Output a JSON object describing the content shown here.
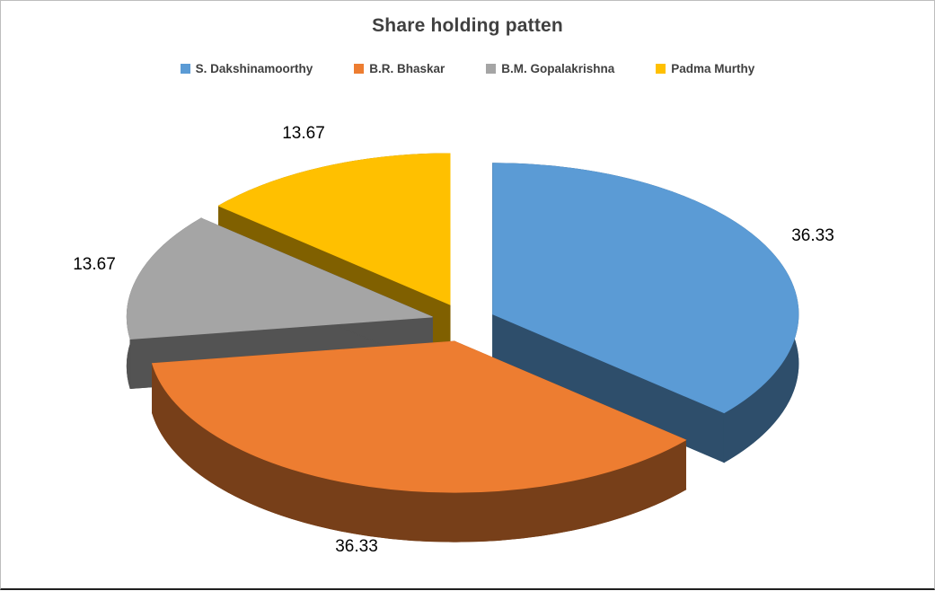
{
  "chart_data": {
    "type": "pie",
    "style": "3d-exploded-pie",
    "title": "Share holding patten",
    "categories": [
      "S. Dakshinamoorthy",
      "B.R. Bhaskar",
      "B.M. Gopalakrishna",
      "Padma Murthy"
    ],
    "values": [
      36.33,
      36.33,
      13.67,
      13.67
    ],
    "labels": [
      "36.33",
      "36.33",
      "13.67",
      "13.67"
    ],
    "colors": [
      "#5B9BD5",
      "#ED7D31",
      "#A5A5A5",
      "#FFC000"
    ],
    "legend_position": "top",
    "start_angle": 0,
    "background": "#FFFFFF",
    "title_color": "#404040",
    "label_color": "#000000"
  }
}
